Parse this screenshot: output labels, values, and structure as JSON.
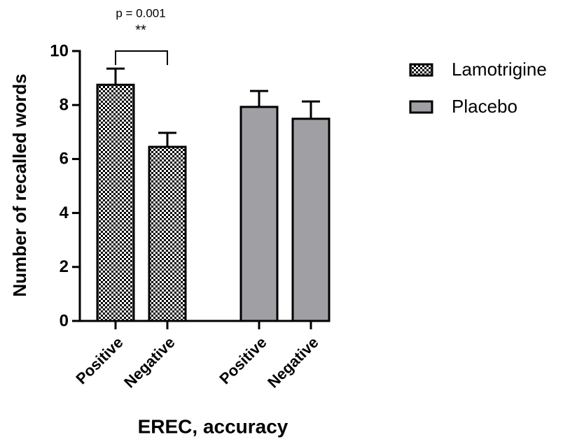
{
  "chart_data": {
    "type": "bar",
    "categories": [
      "Positive",
      "Negative",
      "Positive",
      "Negative"
    ],
    "series": [
      {
        "name": "Lamotrigine",
        "color": "#000000",
        "pattern": "checkerboard",
        "values": [
          8.75,
          6.45,
          null,
          null
        ],
        "errors": [
          0.6,
          0.52,
          null,
          null
        ]
      },
      {
        "name": "Placebo",
        "color": "#a0a0a4",
        "values": [
          null,
          null,
          7.93,
          7.49
        ],
        "errors": [
          null,
          null,
          0.59,
          0.64
        ]
      }
    ],
    "ylim": [
      0,
      10
    ],
    "yticks": [
      0,
      2,
      4,
      6,
      8,
      10
    ],
    "x_label": "EREC, accuracy",
    "y_label": "Number of recalled words",
    "annotations": [
      "p = 0.001",
      "**"
    ],
    "legend": "right"
  }
}
